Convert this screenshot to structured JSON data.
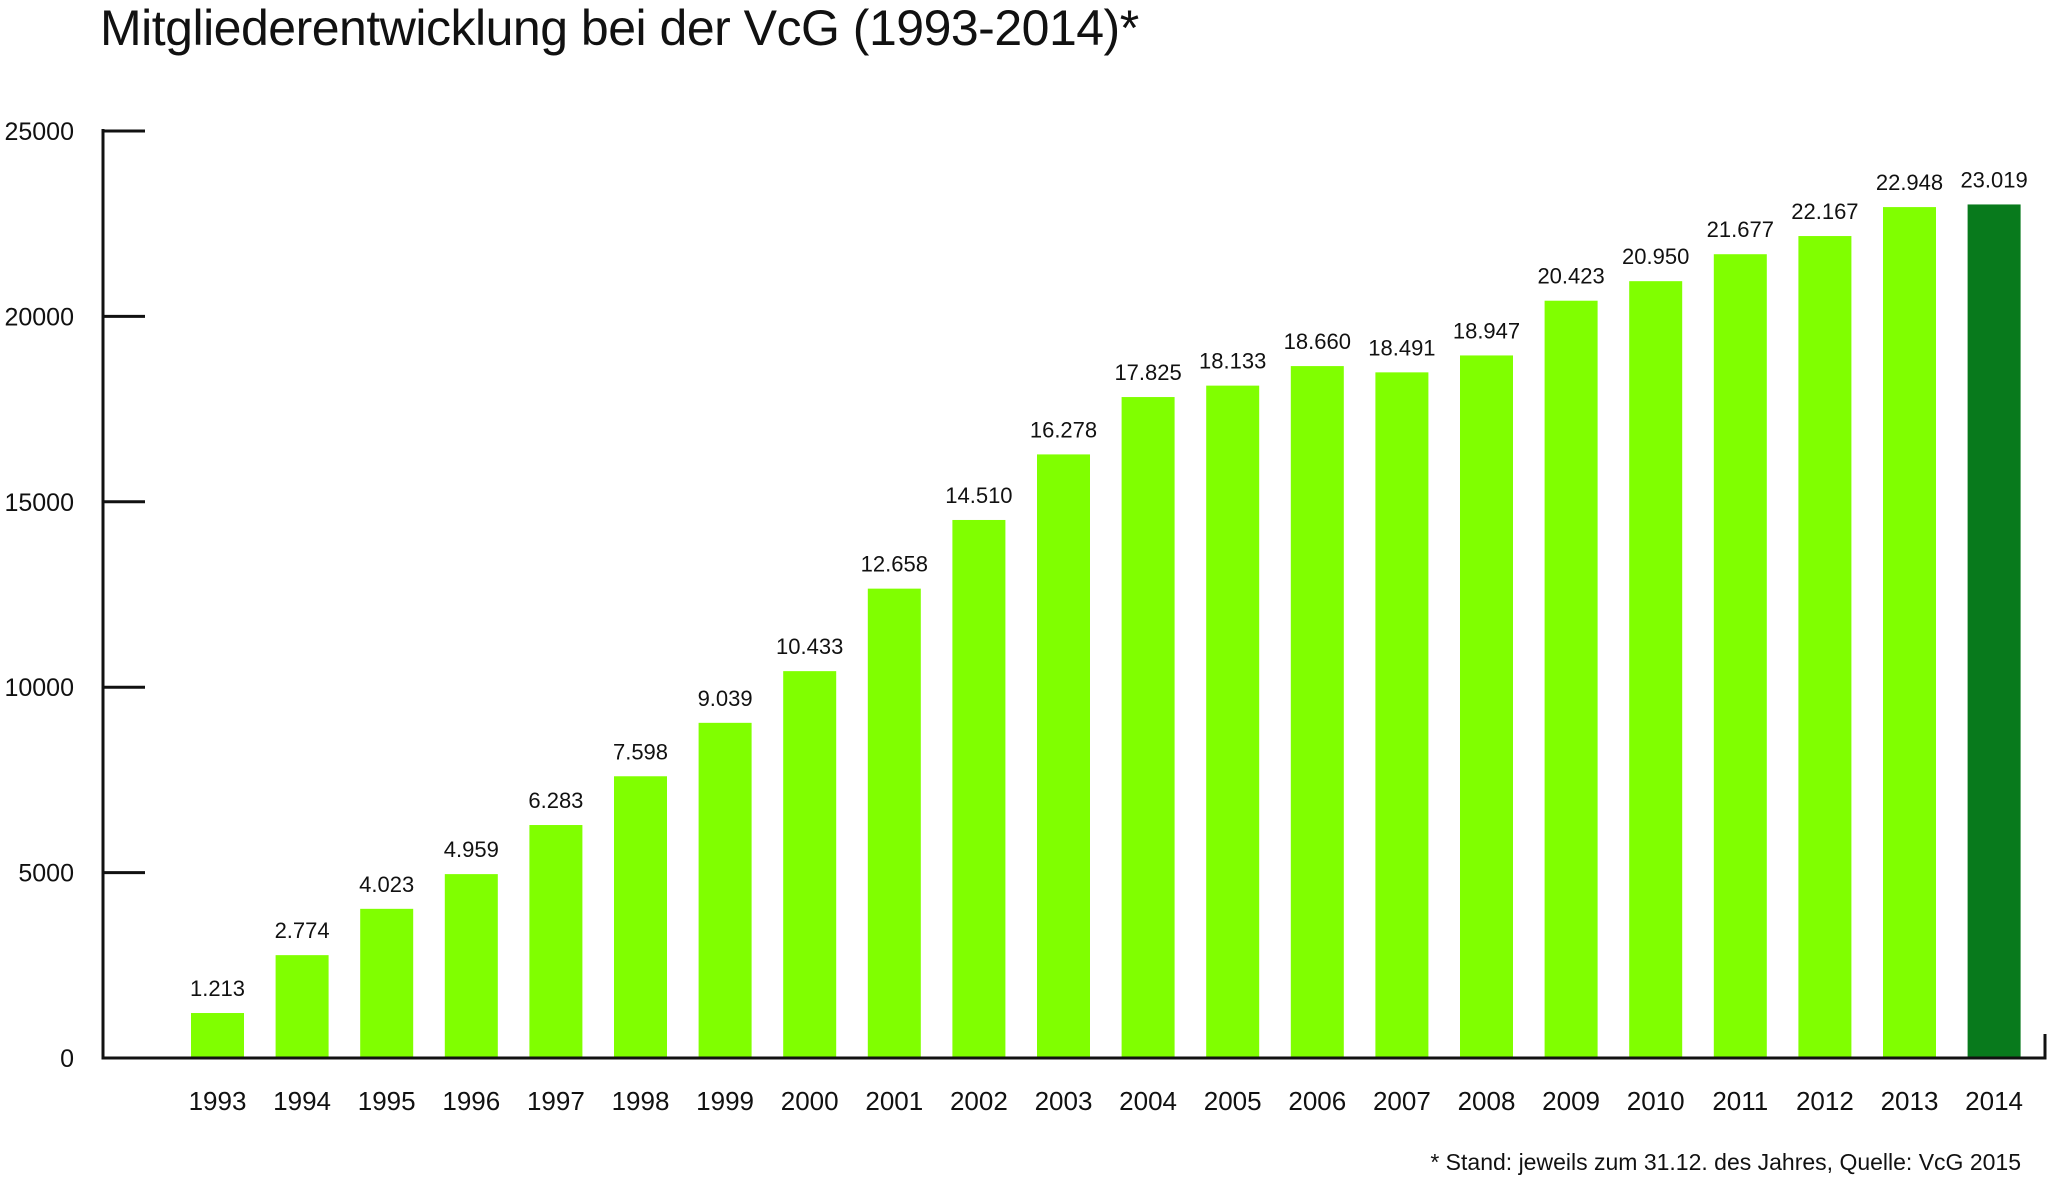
{
  "title": "Mitgliederentwicklung bei der VcG (1993-2014)*",
  "footnote": "* Stand: jeweils zum 31.12. des Jahres, Quelle: VcG 2015",
  "colors": {
    "bar": "#80ff00",
    "bar_highlight": "#087a1c",
    "axis": "#111111"
  },
  "chart_data": {
    "type": "bar",
    "title": "Mitgliederentwicklung bei der VcG (1993-2014)*",
    "xlabel": "",
    "ylabel": "",
    "ylim": [
      0,
      25000
    ],
    "yticks": [
      0,
      5000,
      10000,
      15000,
      20000,
      25000
    ],
    "ytick_labels": [
      "0",
      "5000",
      "10000",
      "15000",
      "20000",
      "25000"
    ],
    "grid": false,
    "legend": "none",
    "categories": [
      "1993",
      "1994",
      "1995",
      "1996",
      "1997",
      "1998",
      "1999",
      "2000",
      "2001",
      "2002",
      "2003",
      "2004",
      "2005",
      "2006",
      "2007",
      "2008",
      "2009",
      "2010",
      "2011",
      "2012",
      "2013",
      "2014"
    ],
    "values": [
      1213,
      2774,
      4023,
      4959,
      6283,
      7598,
      9039,
      10433,
      12658,
      14510,
      16278,
      17825,
      18133,
      18660,
      18491,
      18947,
      20423,
      20950,
      21677,
      22167,
      22948,
      23019
    ],
    "value_labels": [
      "1.213",
      "2.774",
      "4.023",
      "4.959",
      "6.283",
      "7.598",
      "9.039",
      "10.433",
      "12.658",
      "14.510",
      "16.278",
      "17.825",
      "18.133",
      "18.660",
      "18.491",
      "18.947",
      "20.423",
      "20.950",
      "21.677",
      "22.167",
      "22.948",
      "23.019"
    ],
    "highlight_category": "2014"
  }
}
